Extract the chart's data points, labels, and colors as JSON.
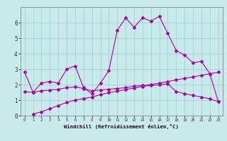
{
  "background_color": "#c8eaea",
  "grid_color": "#a0cccc",
  "line_color": "#aa00aa",
  "plot_bg": "#c8eaea",
  "xlabel": "Windchill (Refroidissement éolien,°C)",
  "xlim": [
    -0.5,
    23.5
  ],
  "ylim": [
    0,
    7.0
  ],
  "yticks": [
    0,
    1,
    2,
    3,
    4,
    5,
    6
  ],
  "xticks": [
    0,
    1,
    2,
    3,
    4,
    5,
    6,
    7,
    8,
    9,
    10,
    11,
    12,
    13,
    14,
    15,
    16,
    17,
    18,
    19,
    20,
    21,
    22,
    23
  ],
  "line1_x": [
    0,
    1,
    2,
    3,
    4,
    5,
    6,
    7,
    8,
    9,
    10,
    11,
    12,
    13,
    14,
    15,
    16,
    17,
    18,
    19,
    20,
    21,
    22,
    23
  ],
  "line1_y": [
    2.8,
    1.5,
    2.1,
    2.2,
    2.1,
    3.0,
    3.2,
    1.8,
    1.4,
    2.1,
    2.9,
    5.5,
    6.3,
    5.7,
    6.3,
    6.1,
    6.4,
    5.3,
    4.2,
    3.9,
    3.4,
    3.5,
    2.7,
    0.9
  ],
  "line2_x": [
    0,
    1,
    2,
    3,
    4,
    5,
    6,
    7,
    8,
    9,
    10,
    11,
    12,
    13,
    14,
    15,
    16,
    17,
    18,
    19,
    20,
    21,
    22,
    23
  ],
  "line2_y": [
    1.55,
    1.5,
    1.6,
    1.65,
    1.7,
    1.8,
    1.85,
    1.75,
    1.6,
    1.65,
    1.7,
    1.75,
    1.8,
    1.9,
    1.95,
    2.0,
    2.1,
    2.2,
    2.3,
    2.4,
    2.5,
    2.6,
    2.7,
    2.8
  ],
  "line3_x": [
    1,
    2,
    3,
    4,
    5,
    6,
    7,
    8,
    9,
    10,
    11,
    12,
    13,
    14,
    15,
    16,
    17,
    18,
    19,
    20,
    21,
    22,
    23
  ],
  "line3_y": [
    0.1,
    0.25,
    0.45,
    0.65,
    0.85,
    1.0,
    1.1,
    1.2,
    1.35,
    1.48,
    1.58,
    1.68,
    1.78,
    1.88,
    1.95,
    1.98,
    2.05,
    1.55,
    1.42,
    1.3,
    1.2,
    1.08,
    0.9
  ]
}
